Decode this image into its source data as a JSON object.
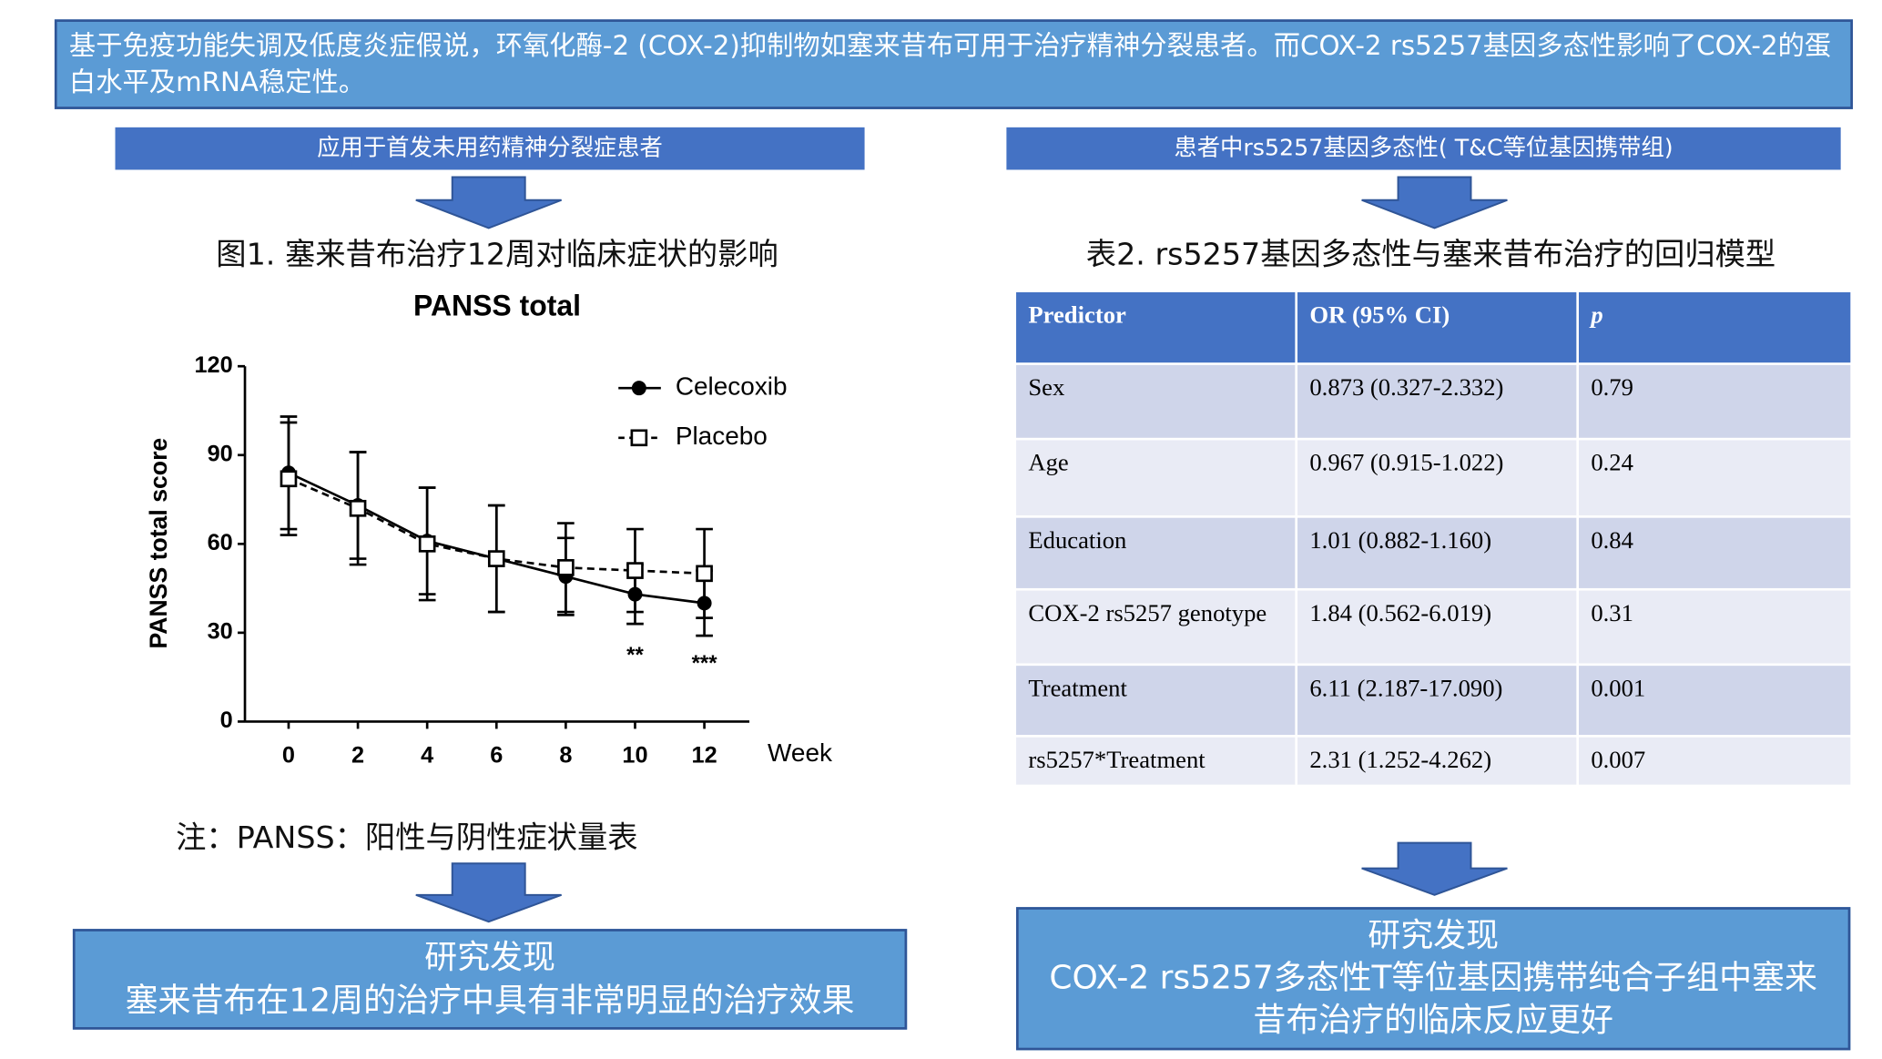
{
  "header": {
    "text": "基于免疫功能失调及低度炎症假说，环氧化酶-2 (COX-2)抑制物如塞来昔布可用于治疗精神分裂患者。而COX-2 rs5257基因多态性影响了COX-2的蛋白水平及mRNA稳定性。"
  },
  "left": {
    "banner": "应用于首发未用药精神分裂症患者",
    "caption": "图1. 塞来昔布治疗12周对临床症状的影响",
    "note": "注：PANSS：阳性与阴性症状量表",
    "finding": {
      "title": "研究发现",
      "text": "塞来昔布在12周的治疗中具有非常明显的治疗效果"
    }
  },
  "chart_data": {
    "type": "line",
    "title": "PANSS total",
    "x_label": "Week",
    "y_label": "PANSS total score",
    "x": [
      0,
      2,
      4,
      6,
      8,
      10,
      12
    ],
    "series": [
      {
        "name": "Celecoxib",
        "color": "#000000",
        "marker": "circle",
        "dashed": false,
        "values": [
          84,
          73,
          61,
          55,
          49,
          43,
          40
        ],
        "errors": [
          19,
          18,
          18,
          18,
          13,
          10,
          11
        ]
      },
      {
        "name": "Placebo",
        "color": "#000000",
        "marker": "square",
        "dashed": true,
        "values": [
          82,
          72,
          60,
          55,
          52,
          51,
          50
        ],
        "errors": [
          19,
          19,
          19,
          18,
          15,
          14,
          15
        ]
      }
    ],
    "xlim": [
      -1.26,
      13.3
    ],
    "xticks": [
      0,
      2,
      4,
      6,
      8,
      10,
      12
    ],
    "ylim": [
      0,
      120
    ],
    "yticks": [
      0,
      30,
      60,
      90,
      120
    ],
    "legend": "top-right",
    "annotations": [
      {
        "text": "**",
        "x": 10
      },
      {
        "text": "***",
        "x": 12
      }
    ]
  },
  "right": {
    "banner": "患者中rs5257基因多态性( T&C等位基因携带组)",
    "caption": "表2. rs5257基因多态性与塞来昔布治疗的回归模型",
    "finding": {
      "title": "研究发现",
      "text": "COX-2 rs5257多态性T等位基因携带纯合子组中塞来昔布治疗的临床反应更好"
    }
  },
  "table": {
    "header": [
      "Predictor",
      "OR (95% CI)",
      "p"
    ],
    "rows": [
      [
        "Sex",
        "0.873 (0.327-2.332)",
        "0.79"
      ],
      [
        "Age",
        "0.967 (0.915-1.022)",
        "0.24"
      ],
      [
        "Education",
        "1.01 (0.882-1.160)",
        "0.84"
      ],
      [
        "COX-2 rs5257 genotype",
        "1.84 (0.562-6.019)",
        "0.31"
      ],
      [
        "Treatment",
        "6.11 (2.187-17.090)",
        "0.001"
      ],
      [
        "rs5257*Treatment",
        "2.31 (1.252-4.262)",
        "0.007"
      ]
    ]
  }
}
